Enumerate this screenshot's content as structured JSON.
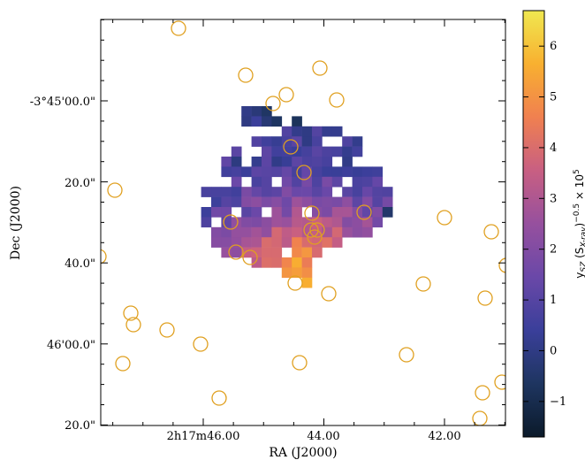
{
  "chart_data": {
    "type": "heatmap",
    "xlabel": "RA (J2000)",
    "ylabel": "Dec (J2000)",
    "x_tick_labels": [
      "2h17m46.00",
      "44.00",
      "42.00"
    ],
    "y_tick_labels": [
      "-3°45'00.0\"",
      "20.0\"",
      "40.0\"",
      "46'00.0\"",
      "20.0\""
    ],
    "colorbar": {
      "label": "y_SZ (S_X-ray)^-0.5 × 10^5",
      "ticks": [
        "−1",
        "0",
        "1",
        "2",
        "3",
        "4",
        "5",
        "6"
      ],
      "tick_values": [
        -1,
        0,
        1,
        2,
        3,
        4,
        5,
        6
      ],
      "vmin": -1.7,
      "vmax": 6.7,
      "colormap": "cubehelix",
      "colors": [
        "#0b1a2a",
        "#1e3560",
        "#3a3f9a",
        "#6a48a8",
        "#96509e",
        "#c85f82",
        "#f08050",
        "#f8b030",
        "#f0e850"
      ]
    },
    "grid_origin_cell": [
      -3,
      -3
    ],
    "grid_rows": [
      "....................................",
      "......................###...........",
      "......................######........",
      "..........................######....",
      ".......................###########..",
      ".....................#############..",
      "....................#############...",
      "....................################",
      "....................################",
      "..................###################",
      "...................##################",
      "..................###################",
      "..................##################",
      "...................################",
      "...................#############",
      "....................##########",
      ".......................######",
      "..........................###",
      "...........................##"
    ],
    "pixel_values_note": "heatmap of ySZ ratio; high values (~5-6) near cluster core, negative at NW edge",
    "circle_color": "#e0a020"
  }
}
